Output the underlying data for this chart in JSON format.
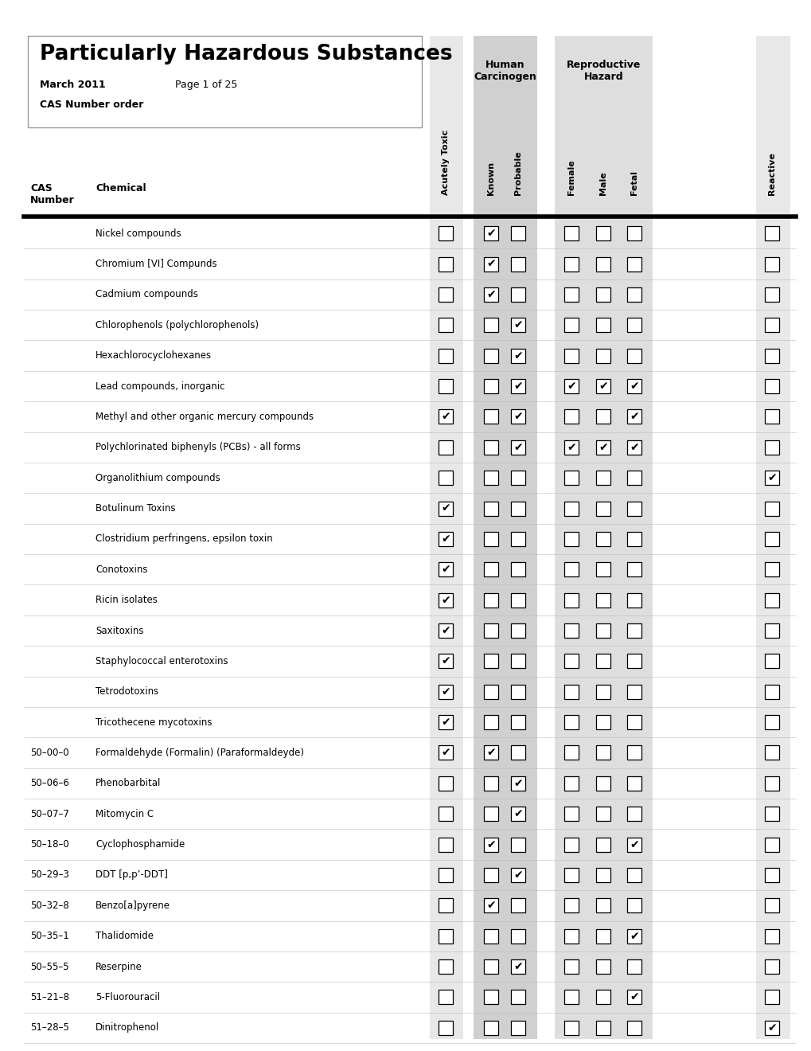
{
  "title": "Particularly Hazardous Substances",
  "date": "March 2011",
  "page": "Page 1 of 25",
  "order": "CAS Number order",
  "col_headers": [
    "Acutely Toxic",
    "Known",
    "Probable",
    "Female",
    "Male",
    "Fetal",
    "Reactive"
  ],
  "rows": [
    {
      "cas": "",
      "chemical": "Nickel compounds",
      "checks": [
        0,
        1,
        0,
        0,
        0,
        0,
        0
      ]
    },
    {
      "cas": "",
      "chemical": "Chromium [VI] Compunds",
      "checks": [
        0,
        1,
        0,
        0,
        0,
        0,
        0
      ]
    },
    {
      "cas": "",
      "chemical": "Cadmium compounds",
      "checks": [
        0,
        1,
        0,
        0,
        0,
        0,
        0
      ]
    },
    {
      "cas": "",
      "chemical": "Chlorophenols (polychlorophenols)",
      "checks": [
        0,
        0,
        1,
        0,
        0,
        0,
        0
      ]
    },
    {
      "cas": "",
      "chemical": "Hexachlorocyclohexanes",
      "checks": [
        0,
        0,
        1,
        0,
        0,
        0,
        0
      ]
    },
    {
      "cas": "",
      "chemical": "Lead compounds, inorganic",
      "checks": [
        0,
        0,
        1,
        1,
        1,
        1,
        0
      ]
    },
    {
      "cas": "",
      "chemical": "Methyl and other organic mercury compounds",
      "checks": [
        1,
        0,
        1,
        0,
        0,
        1,
        0
      ]
    },
    {
      "cas": "",
      "chemical": "Polychlorinated biphenyls (PCBs) - all forms",
      "checks": [
        0,
        0,
        1,
        1,
        1,
        1,
        0
      ]
    },
    {
      "cas": "",
      "chemical": "Organolithium compounds",
      "checks": [
        0,
        0,
        0,
        0,
        0,
        0,
        1
      ]
    },
    {
      "cas": "",
      "chemical": "Botulinum Toxins",
      "checks": [
        1,
        0,
        0,
        0,
        0,
        0,
        0
      ]
    },
    {
      "cas": "",
      "chemical": "Clostridium perfringens, epsilon toxin",
      "checks": [
        1,
        0,
        0,
        0,
        0,
        0,
        0
      ]
    },
    {
      "cas": "",
      "chemical": "Conotoxins",
      "checks": [
        1,
        0,
        0,
        0,
        0,
        0,
        0
      ]
    },
    {
      "cas": "",
      "chemical": "Ricin isolates",
      "checks": [
        1,
        0,
        0,
        0,
        0,
        0,
        0
      ]
    },
    {
      "cas": "",
      "chemical": "Saxitoxins",
      "checks": [
        1,
        0,
        0,
        0,
        0,
        0,
        0
      ]
    },
    {
      "cas": "",
      "chemical": "Staphylococcal enterotoxins",
      "checks": [
        1,
        0,
        0,
        0,
        0,
        0,
        0
      ]
    },
    {
      "cas": "",
      "chemical": "Tetrodotoxins",
      "checks": [
        1,
        0,
        0,
        0,
        0,
        0,
        0
      ]
    },
    {
      "cas": "",
      "chemical": "Tricothecene mycotoxins",
      "checks": [
        1,
        0,
        0,
        0,
        0,
        0,
        0
      ]
    },
    {
      "cas": "50–00–0",
      "chemical": "Formaldehyde (Formalin) (Paraformaldeyde)",
      "checks": [
        1,
        1,
        0,
        0,
        0,
        0,
        0
      ]
    },
    {
      "cas": "50–06–6",
      "chemical": "Phenobarbital",
      "checks": [
        0,
        0,
        1,
        0,
        0,
        0,
        0
      ]
    },
    {
      "cas": "50–07–7",
      "chemical": "Mitomycin C",
      "checks": [
        0,
        0,
        1,
        0,
        0,
        0,
        0
      ]
    },
    {
      "cas": "50–18–0",
      "chemical": "Cyclophosphamide",
      "checks": [
        0,
        1,
        0,
        0,
        0,
        1,
        0
      ]
    },
    {
      "cas": "50–29–3",
      "chemical": "DDT [p,p’-DDT]",
      "checks": [
        0,
        0,
        1,
        0,
        0,
        0,
        0
      ]
    },
    {
      "cas": "50–32–8",
      "chemical": "Benzo[a]pyrene",
      "checks": [
        0,
        1,
        0,
        0,
        0,
        0,
        0
      ]
    },
    {
      "cas": "50–35–1",
      "chemical": "Thalidomide",
      "checks": [
        0,
        0,
        0,
        0,
        0,
        1,
        0
      ]
    },
    {
      "cas": "50–55–5",
      "chemical": "Reserpine",
      "checks": [
        0,
        0,
        1,
        0,
        0,
        0,
        0
      ]
    },
    {
      "cas": "51–21–8",
      "chemical": "5-Fluorouracil",
      "checks": [
        0,
        0,
        0,
        0,
        0,
        1,
        0
      ]
    },
    {
      "cas": "51–28–5",
      "chemical": "Dinitrophenol",
      "checks": [
        0,
        0,
        0,
        0,
        0,
        0,
        1
      ]
    }
  ],
  "bg_white": "#ffffff",
  "bg_hc": "#d0d0d0",
  "bg_rh": "#dedede",
  "bg_react": "#e8e8e8",
  "bg_acutely": "#e8e8e8"
}
